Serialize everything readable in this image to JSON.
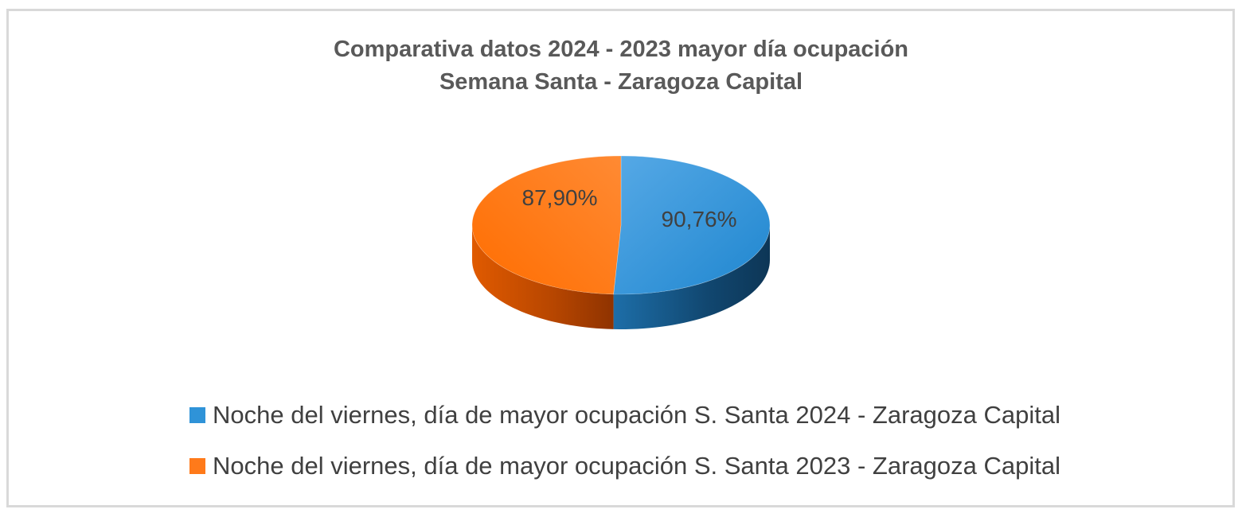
{
  "chart_data": {
    "type": "pie",
    "title": "Comparativa datos 2024 - 2023 mayor día ocupación",
    "subtitle": "Semana Santa - Zaragoza Capital",
    "slices": [
      {
        "label": "Noche del viernes, día de mayor ocupación S. Santa 2024 - Zaragoza Capital",
        "value": 90.76,
        "display": "90,76%",
        "color": "#2f93d8"
      },
      {
        "label": "Noche del viernes, día de mayor ocupación S. Santa 2023 - Zaragoza Capital",
        "value": 87.9,
        "display": "87,90%",
        "color": "#ff7a1a"
      }
    ],
    "legend_position": "bottom",
    "style": "3d-pie"
  }
}
